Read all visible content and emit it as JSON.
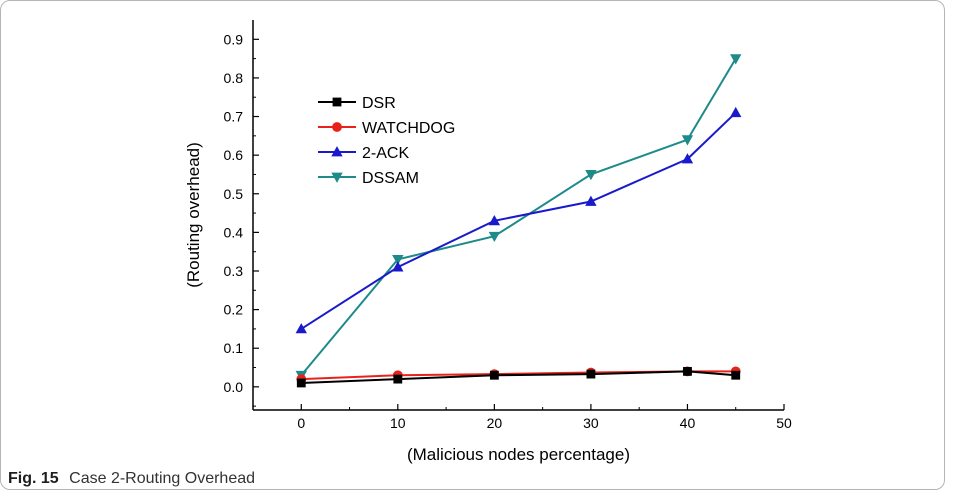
{
  "caption": {
    "label": "Fig. 15",
    "text": "Case 2-Routing Overhead"
  },
  "chart_data": {
    "type": "line",
    "title": "",
    "xlabel": "(Malicious nodes percentage)",
    "ylabel": "(Routing overhead)",
    "xlim": [
      -5,
      50
    ],
    "ylim": [
      -0.06,
      0.95
    ],
    "xticks": [
      0,
      10,
      20,
      30,
      40,
      50
    ],
    "yticks": [
      0.0,
      0.1,
      0.2,
      0.3,
      0.4,
      0.5,
      0.6,
      0.7,
      0.8,
      0.9
    ],
    "x": [
      0,
      10,
      20,
      30,
      40,
      45
    ],
    "legend_position": "top-left",
    "grid": false,
    "series": [
      {
        "name": "DSR",
        "color": "#000000",
        "marker": "square",
        "values": [
          0.01,
          0.02,
          0.03,
          0.033,
          0.04,
          0.03
        ]
      },
      {
        "name": "WATCHDOG",
        "color": "#e8221a",
        "marker": "circle",
        "values": [
          0.02,
          0.03,
          0.033,
          0.037,
          0.04,
          0.04
        ]
      },
      {
        "name": "2-ACK",
        "color": "#1a1acc",
        "marker": "triangle-up",
        "values": [
          0.15,
          0.31,
          0.43,
          0.48,
          0.59,
          0.71
        ]
      },
      {
        "name": "DSSAM",
        "color": "#1e8a8a",
        "marker": "triangle-down",
        "values": [
          0.03,
          0.33,
          0.39,
          0.55,
          0.64,
          0.85
        ]
      }
    ]
  }
}
